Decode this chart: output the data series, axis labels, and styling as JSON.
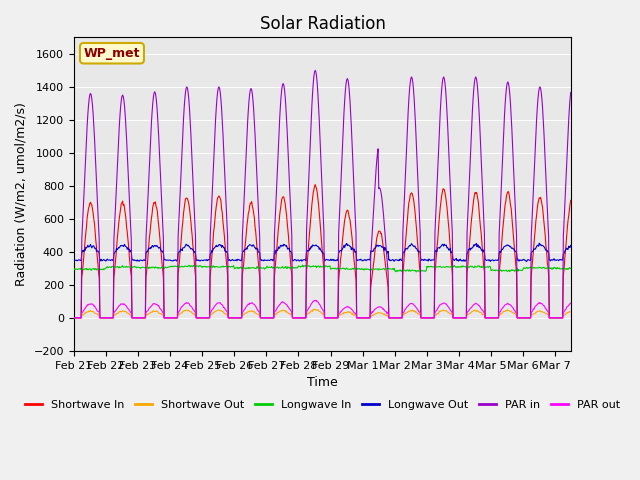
{
  "title": "Solar Radiation",
  "ylabel": "Radiation (W/m2, umol/m2/s)",
  "xlabel": "Time",
  "ylim": [
    -200,
    1700
  ],
  "yticks": [
    -200,
    0,
    200,
    400,
    600,
    800,
    1000,
    1200,
    1400,
    1600
  ],
  "plot_bg_color": "#e8e8e8",
  "fig_bg_color": "#f0f0f0",
  "label_box": "WP_met",
  "series_colors": {
    "shortwave_in": "#ff0000",
    "shortwave_out": "#ffa500",
    "longwave_in": "#00cc00",
    "longwave_out": "#0000cc",
    "par_in": "#9900cc",
    "par_out": "#ff00ff"
  },
  "legend_labels": [
    "Shortwave In",
    "Shortwave Out",
    "Longwave In",
    "Longwave Out",
    "PAR in",
    "PAR out"
  ],
  "date_labels": [
    "Feb 21",
    "Feb 22",
    "Feb 23",
    "Feb 24",
    "Feb 25",
    "Feb 26",
    "Feb 27",
    "Feb 28",
    "Feb 29",
    "Mar 1",
    "Mar 2",
    "Mar 3",
    "Mar 4",
    "Mar 5",
    "Mar 6",
    "Mar 7"
  ],
  "shortwave_in_peaks": [
    700,
    700,
    700,
    730,
    740,
    700,
    730,
    800,
    650,
    530,
    760,
    780,
    760,
    760,
    730,
    730
  ],
  "par_in_peaks": [
    1360,
    1350,
    1370,
    1400,
    1400,
    1390,
    1420,
    1500,
    1450,
    1050,
    1460,
    1460,
    1460,
    1430,
    1400,
    1400
  ],
  "par_out_peaks": [
    90,
    90,
    90,
    95,
    95,
    95,
    100,
    110,
    70,
    70,
    90,
    95,
    90,
    90,
    95,
    95
  ],
  "shortwave_out_peaks": [
    40,
    40,
    40,
    45,
    45,
    40,
    45,
    50,
    35,
    30,
    45,
    45,
    45,
    45,
    40,
    40
  ],
  "longwave_in_base": 300,
  "longwave_out_base": 370,
  "longwave_out_day_variation": 70,
  "total_days": 15.5,
  "xlim_hours": 372
}
